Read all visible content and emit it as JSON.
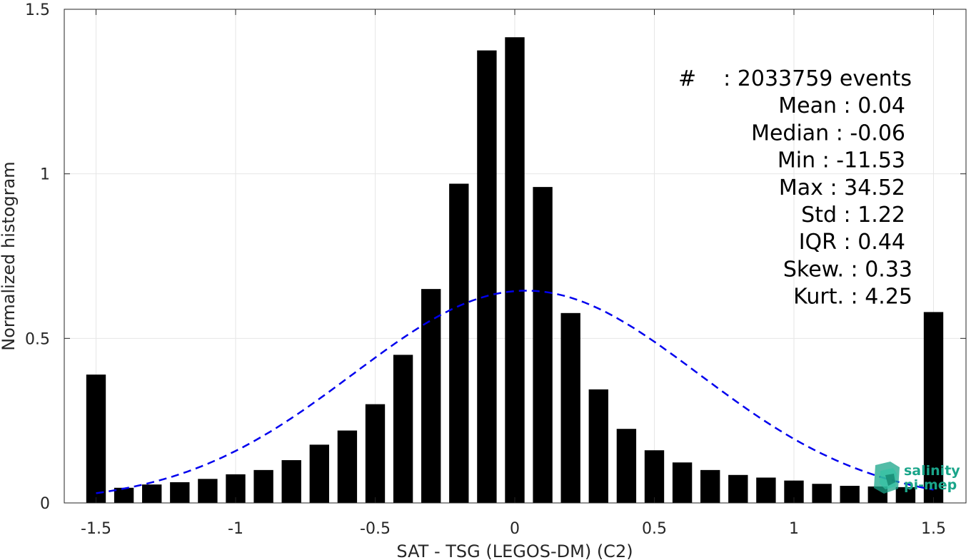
{
  "chart_data": {
    "type": "bar",
    "xlabel": "SAT - TSG (LEGOS-DM) (C2)",
    "ylabel": "Normalized histogram",
    "xlim": [
      -1.5,
      1.5
    ],
    "ylim": [
      0,
      1.5
    ],
    "grid": true,
    "x_ticks": [
      "-1.5",
      "-1",
      "-0.5",
      "0",
      "0.5",
      "1",
      "1.5"
    ],
    "y_ticks": [
      "0",
      "0.5",
      "1",
      "1.5"
    ],
    "bar_color": "#000000",
    "fit_color": "#0000ee",
    "x": [
      -1.5,
      -1.4,
      -1.3,
      -1.2,
      -1.1,
      -1.0,
      -0.9,
      -0.8,
      -0.7,
      -0.6,
      -0.5,
      -0.4,
      -0.3,
      -0.2,
      -0.1,
      0.0,
      0.1,
      0.2,
      0.3,
      0.4,
      0.5,
      0.6,
      0.7,
      0.8,
      0.9,
      1.0,
      1.1,
      1.2,
      1.3,
      1.4,
      1.5
    ],
    "values": [
      0.39,
      0.046,
      0.056,
      0.063,
      0.073,
      0.087,
      0.1,
      0.13,
      0.177,
      0.22,
      0.3,
      0.45,
      0.65,
      0.97,
      1.375,
      1.415,
      0.96,
      0.577,
      0.345,
      0.225,
      0.16,
      0.123,
      0.1,
      0.085,
      0.077,
      0.068,
      0.058,
      0.052,
      0.05,
      0.048,
      0.58
    ],
    "fit": {
      "type": "normal",
      "mean": 0.04,
      "std": 0.62,
      "peak": 0.645,
      "style": "dashed"
    },
    "stats": [
      {
        "label": "#",
        "value": ": 2033759 events"
      },
      {
        "label": "Mean",
        "value": ": 0.04"
      },
      {
        "label": "Median",
        "value": ": -0.06"
      },
      {
        "label": "Min",
        "value": ": -11.53"
      },
      {
        "label": "Max",
        "value": ": 34.52"
      },
      {
        "label": "Std",
        "value": ": 1.22"
      },
      {
        "label": "IQR",
        "value": ": 0.44"
      },
      {
        "label": "Skew.",
        "value": ": 0.33"
      },
      {
        "label": "Kurt.",
        "value": ": 4.25"
      }
    ]
  },
  "logo": {
    "line1": "salinity",
    "line2": "pi-mep",
    "color": "#1aa58a"
  }
}
